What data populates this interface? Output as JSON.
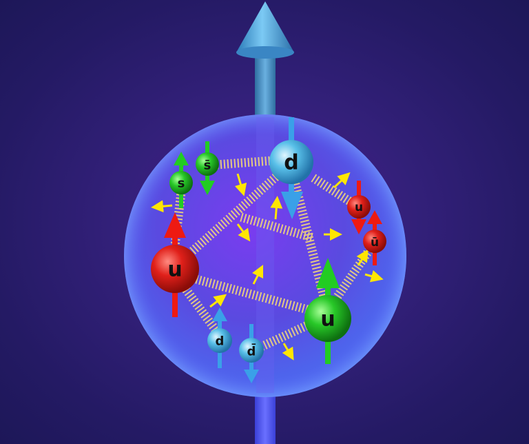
{
  "diagram": {
    "colors": {
      "background": "#241a64",
      "sphere": "#6a52e8",
      "red_quark": "#e0201a",
      "green_quark": "#28c828",
      "blue_quark": "#4fb8e8",
      "gluon": "#f2d77a",
      "arrow_yellow": "#ffe600"
    },
    "quarks": [
      {
        "id": "d-top",
        "label": "d",
        "color": "blue",
        "spin": "down"
      },
      {
        "id": "u-left",
        "label": "u",
        "color": "red",
        "spin": "up"
      },
      {
        "id": "u-right",
        "label": "u",
        "color": "green",
        "spin": "up"
      },
      {
        "id": "s",
        "label": "s",
        "color": "green",
        "spin": "up"
      },
      {
        "id": "s-bar",
        "label": "s̄",
        "color": "green",
        "spin": "down"
      },
      {
        "id": "u-small",
        "label": "u",
        "color": "red",
        "spin": "down"
      },
      {
        "id": "u-bar",
        "label": "ū",
        "color": "red",
        "spin": "up"
      },
      {
        "id": "d-small",
        "label": "d",
        "color": "blue",
        "spin": "up"
      },
      {
        "id": "d-bar",
        "label": "d̄",
        "color": "blue",
        "spin": "down"
      }
    ]
  }
}
